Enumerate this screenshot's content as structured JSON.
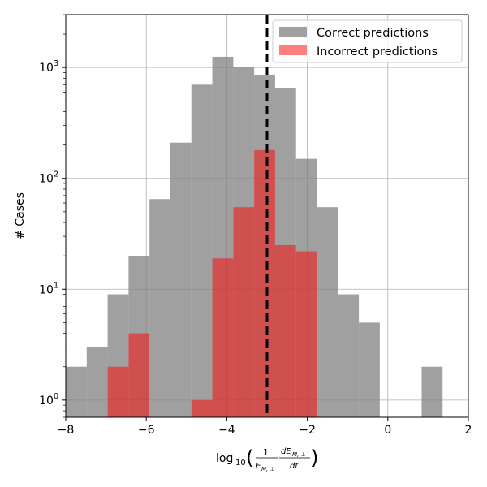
{
  "chart_data": {
    "type": "bar",
    "title": "",
    "xlabel": "log10(1/E_{M,⊥} dE_{M,⊥}/dt)",
    "ylabel": "# Cases",
    "xscale": "linear",
    "yscale": "log",
    "xlim": [
      -8,
      2
    ],
    "ylim": [
      0.7,
      3000
    ],
    "x_ticks": [
      -8,
      -6,
      -4,
      -2,
      0,
      2
    ],
    "x_tick_labels": [
      "−8",
      "−6",
      "−4",
      "−2",
      "0",
      "2"
    ],
    "y_ticks": [
      1,
      10,
      100,
      1000
    ],
    "grid": true,
    "legend_position": "top-right",
    "bin_edges": [
      -8.0,
      -7.48,
      -6.96,
      -6.44,
      -5.92,
      -5.4,
      -4.88,
      -4.36,
      -3.84,
      -3.32,
      -2.8,
      -2.28,
      -1.76,
      -1.24,
      -0.72,
      -0.2,
      0.32,
      0.84,
      1.36,
      1.88
    ],
    "series": [
      {
        "name": "Correct predictions",
        "color": "#808080",
        "opacity": 0.75,
        "values": [
          2,
          3,
          9,
          20,
          65,
          210,
          700,
          1250,
          1000,
          850,
          650,
          150,
          55,
          9,
          5,
          0,
          0,
          2,
          0
        ]
      },
      {
        "name": "Incorrect predictions",
        "color": "#ff0000",
        "opacity": 0.5,
        "values": [
          0,
          0,
          2,
          4,
          0,
          0,
          1,
          19,
          55,
          180,
          25,
          22,
          0,
          0,
          0,
          0,
          0,
          0,
          0
        ]
      }
    ],
    "reference_line": {
      "x": -3,
      "style": "dashed",
      "color": "#000000"
    }
  }
}
